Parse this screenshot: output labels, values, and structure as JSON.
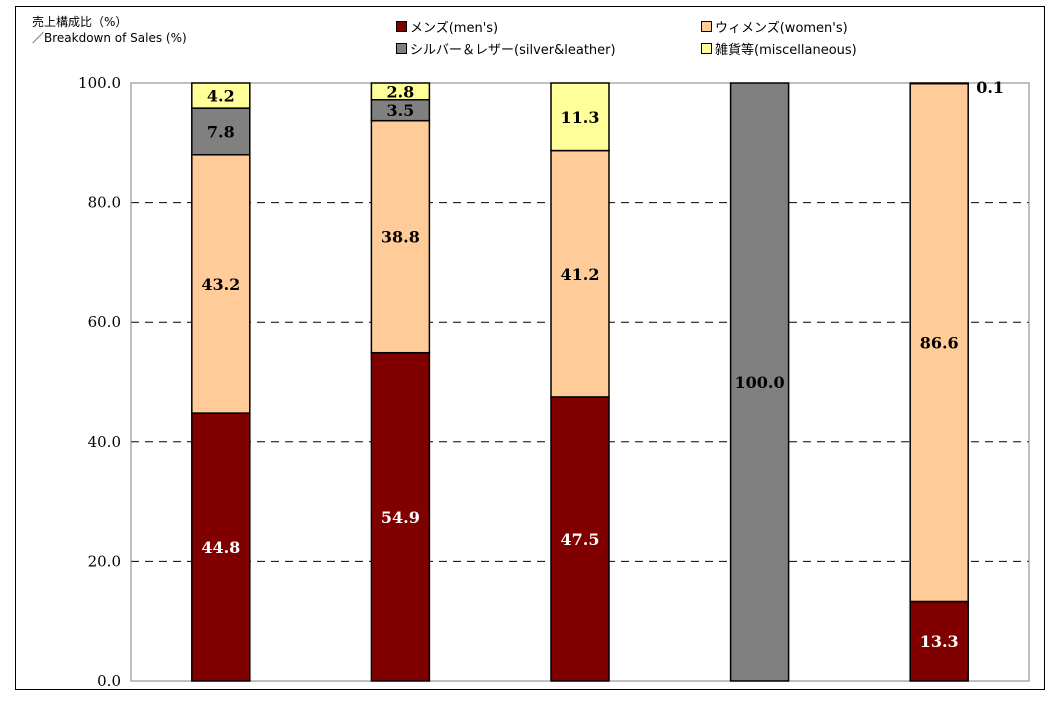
{
  "chart_data": {
    "type": "bar",
    "stacked": true,
    "ylabel_ja": "売上構成比（%）",
    "ylabel_en": "／Breakdown of Sales (%)",
    "ylim": [
      0,
      100
    ],
    "yticks": [
      "0.0",
      "20.0",
      "40.0",
      "60.0",
      "80.0",
      "100.0"
    ],
    "ytick_values": [
      0,
      20,
      40,
      60,
      80,
      100
    ],
    "grid": true,
    "legend_position": "top",
    "categories": [
      "",
      "",
      "",
      "",
      ""
    ],
    "series": [
      {
        "name": "メンズ(men's)",
        "color": "#800000",
        "label_color": "#ffffff",
        "values": [
          44.8,
          54.9,
          47.5,
          0,
          13.3
        ],
        "labels": [
          "44.8",
          "54.9",
          "47.5",
          "",
          "13.3"
        ]
      },
      {
        "name": "ウィメンズ(women's)",
        "color": "#ffcc99",
        "label_color": "#000000",
        "values": [
          43.2,
          38.8,
          41.2,
          0,
          86.6
        ],
        "labels": [
          "43.2",
          "38.8",
          "41.2",
          "",
          "86.6"
        ]
      },
      {
        "name": "シルバー＆レザー(silver&leather)",
        "color": "#808080",
        "label_color": "#000000",
        "values": [
          7.8,
          3.5,
          0,
          100.0,
          0
        ],
        "labels": [
          "7.8",
          "3.5",
          "",
          "100.0",
          ""
        ]
      },
      {
        "name": "雑貨等(miscellaneous)",
        "color": "#ffff99",
        "label_color": "#000000",
        "values": [
          4.2,
          2.8,
          11.3,
          0,
          0.1
        ],
        "labels": [
          "4.2",
          "2.8",
          "11.3",
          "",
          "0.1"
        ]
      }
    ]
  }
}
